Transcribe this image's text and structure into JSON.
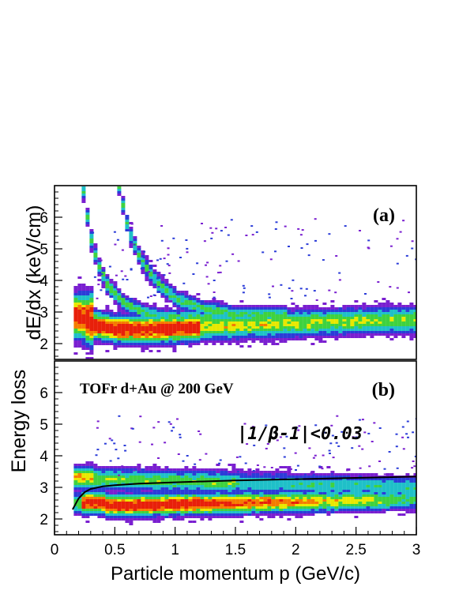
{
  "chart_data": [
    {
      "type": "heatmap",
      "panel": "(a)",
      "panel_label": "(a)",
      "xlim": [
        0,
        3
      ],
      "ylim": [
        1.5,
        7
      ],
      "yticks": [
        "2",
        "3",
        "4",
        "5",
        "6"
      ],
      "bands": [
        {
          "kind": "core",
          "points": [
            [
              0.18,
              2.9
            ],
            [
              0.3,
              2.62
            ],
            [
              0.5,
              2.5
            ],
            [
              0.7,
              2.48
            ],
            [
              0.9,
              2.5
            ],
            [
              1.2,
              2.55
            ],
            [
              1.6,
              2.62
            ],
            [
              2.0,
              2.68
            ],
            [
              2.5,
              2.75
            ],
            [
              3.0,
              2.78
            ]
          ],
          "width": 0.45
        },
        {
          "kind": "band",
          "points": [
            [
              0.22,
              7.0
            ],
            [
              0.28,
              5.5
            ],
            [
              0.34,
              4.6
            ],
            [
              0.42,
              3.9
            ],
            [
              0.55,
              3.35
            ],
            [
              0.7,
              3.05
            ],
            [
              0.9,
              2.85
            ]
          ],
          "width": 0.28
        },
        {
          "kind": "band",
          "points": [
            [
              0.52,
              7.0
            ],
            [
              0.6,
              5.6
            ],
            [
              0.7,
              4.7
            ],
            [
              0.85,
              3.9
            ],
            [
              1.0,
              3.45
            ],
            [
              1.2,
              3.15
            ],
            [
              1.5,
              2.95
            ]
          ],
          "width": 0.28
        }
      ]
    },
    {
      "type": "heatmap",
      "panel": "(b)",
      "panel_label": "(b)",
      "annotation": "TOFr d+Au @ 200 GeV",
      "cut_label": "|1/β-1|<0.03",
      "xlim": [
        0,
        3
      ],
      "ylim": [
        1.5,
        7
      ],
      "yticks": [
        "2",
        "3",
        "4",
        "5",
        "6"
      ],
      "xticks": [
        "0",
        "0.5",
        "1",
        "1.5",
        "2",
        "2.5",
        "3"
      ],
      "curve": {
        "x": [
          0.15,
          0.2,
          0.25,
          0.3,
          0.4,
          0.5,
          0.7,
          1.0,
          1.5,
          2.0,
          2.5,
          3.0
        ],
        "y": [
          2.3,
          2.65,
          2.85,
          2.95,
          3.03,
          3.07,
          3.12,
          3.16,
          3.22,
          3.26,
          3.3,
          3.34
        ]
      }
    }
  ],
  "axes": {
    "ylabel_a": "dE/dx (keV/cm)",
    "ylabel_b": "Energy loss",
    "xlabel": "Particle momentum p (GeV/c)"
  },
  "colors": {
    "red": "#e8200a",
    "orange": "#f57c00",
    "yellow": "#e8e800",
    "green": "#3fd23f",
    "cyan": "#1fc0c8",
    "blue": "#2b3cd8",
    "purple": "#7a1fd0"
  }
}
